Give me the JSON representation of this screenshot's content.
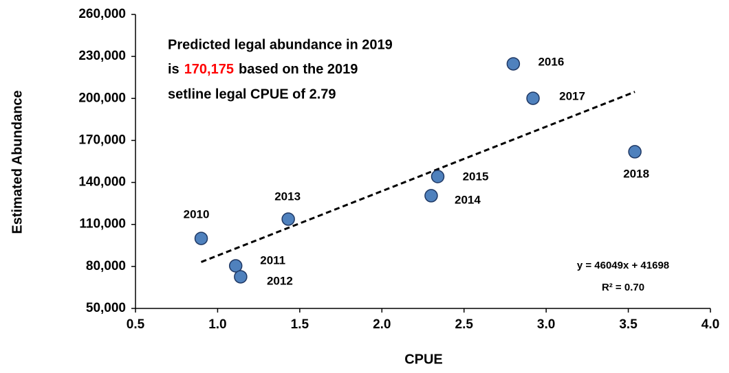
{
  "chart_data": {
    "type": "scatter",
    "x_label": "CPUE",
    "y_label": "Estimated Abundance",
    "series": [
      {
        "color": "#4f81bd",
        "labels": [
          "2010",
          "2011",
          "2012",
          "2013",
          "2014",
          "2015",
          "2016",
          "2017",
          "2018"
        ],
        "x": [
          0.9,
          1.11,
          1.14,
          1.43,
          2.3,
          2.34,
          2.8,
          2.92,
          3.54
        ],
        "values": [
          100000,
          80400,
          72600,
          113800,
          130500,
          144200,
          224700,
          200100,
          161900
        ]
      }
    ],
    "xlim": [
      0.5,
      4.0
    ],
    "xticks": [
      0.5,
      {
        "value": 1,
        "label": "1.0"
      },
      1.5,
      {
        "value": 2,
        "label": "2.0"
      },
      2.5,
      {
        "value": 3,
        "label": "3.0"
      },
      3.5,
      {
        "value": 4,
        "label": "4.0"
      }
    ],
    "ylim": [
      50000,
      260000
    ],
    "yticks": [
      {
        "value": 50000,
        "label": "50,000"
      },
      {
        "value": 80000,
        "label": "80,000"
      },
      {
        "value": 110000,
        "label": "110,000"
      },
      {
        "value": 140000,
        "label": "140,000"
      },
      {
        "value": 170000,
        "label": "170,000"
      },
      {
        "value": 200000,
        "label": "200,000"
      },
      {
        "value": 230000,
        "label": "230,000"
      },
      {
        "value": 260000,
        "label": "260,000"
      }
    ],
    "trendline": {
      "slope": 46049,
      "intercept": 41698,
      "equation": "y = 46049x + 41698",
      "r2": "R² = 0.70"
    },
    "annotation": {
      "line1": "Predicted legal abundance in 2019",
      "prefix": "is",
      "highlight": "170,175",
      "highlight_color": "#ff0000",
      "suffix": "based on the 2019",
      "line3": "setline legal CPUE of 2.79"
    }
  }
}
